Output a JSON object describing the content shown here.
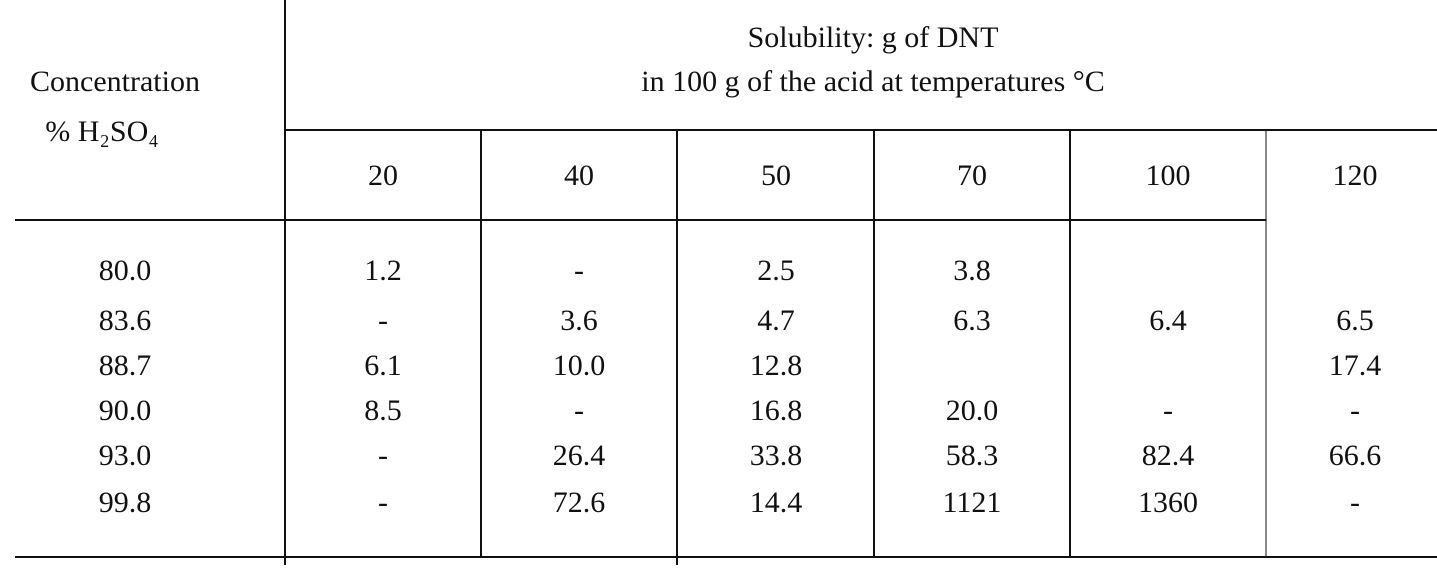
{
  "table": {
    "row_header": [
      "Concentration",
      "% H₂SO₄"
    ],
    "group_header": [
      "Solubility:  g  of  DNT",
      "in  100  g  of  the  acid  at  temperatures  °C"
    ],
    "columns": [
      "20",
      "40",
      "50",
      "70",
      "100",
      "120"
    ],
    "rows": [
      [
        "80.0",
        "1.2",
        "-",
        "2.5",
        "3.8",
        null,
        null
      ],
      [
        "83.6",
        "-",
        "3.6",
        "4.7",
        "6.3",
        "6.4",
        "6.5"
      ],
      [
        "88.7",
        "6.1",
        "10.0",
        "12.8",
        null,
        null,
        "17.4"
      ],
      [
        "90.0",
        "8.5",
        "-",
        "16.8",
        "20.0",
        "-",
        "-"
      ],
      [
        "93.0",
        "-",
        "26.4",
        "33.8",
        "58.3",
        "82.4",
        "66.6"
      ],
      [
        "99.8",
        "-",
        "72.6",
        "14.4",
        "1121",
        "1360",
        "-"
      ]
    ]
  }
}
